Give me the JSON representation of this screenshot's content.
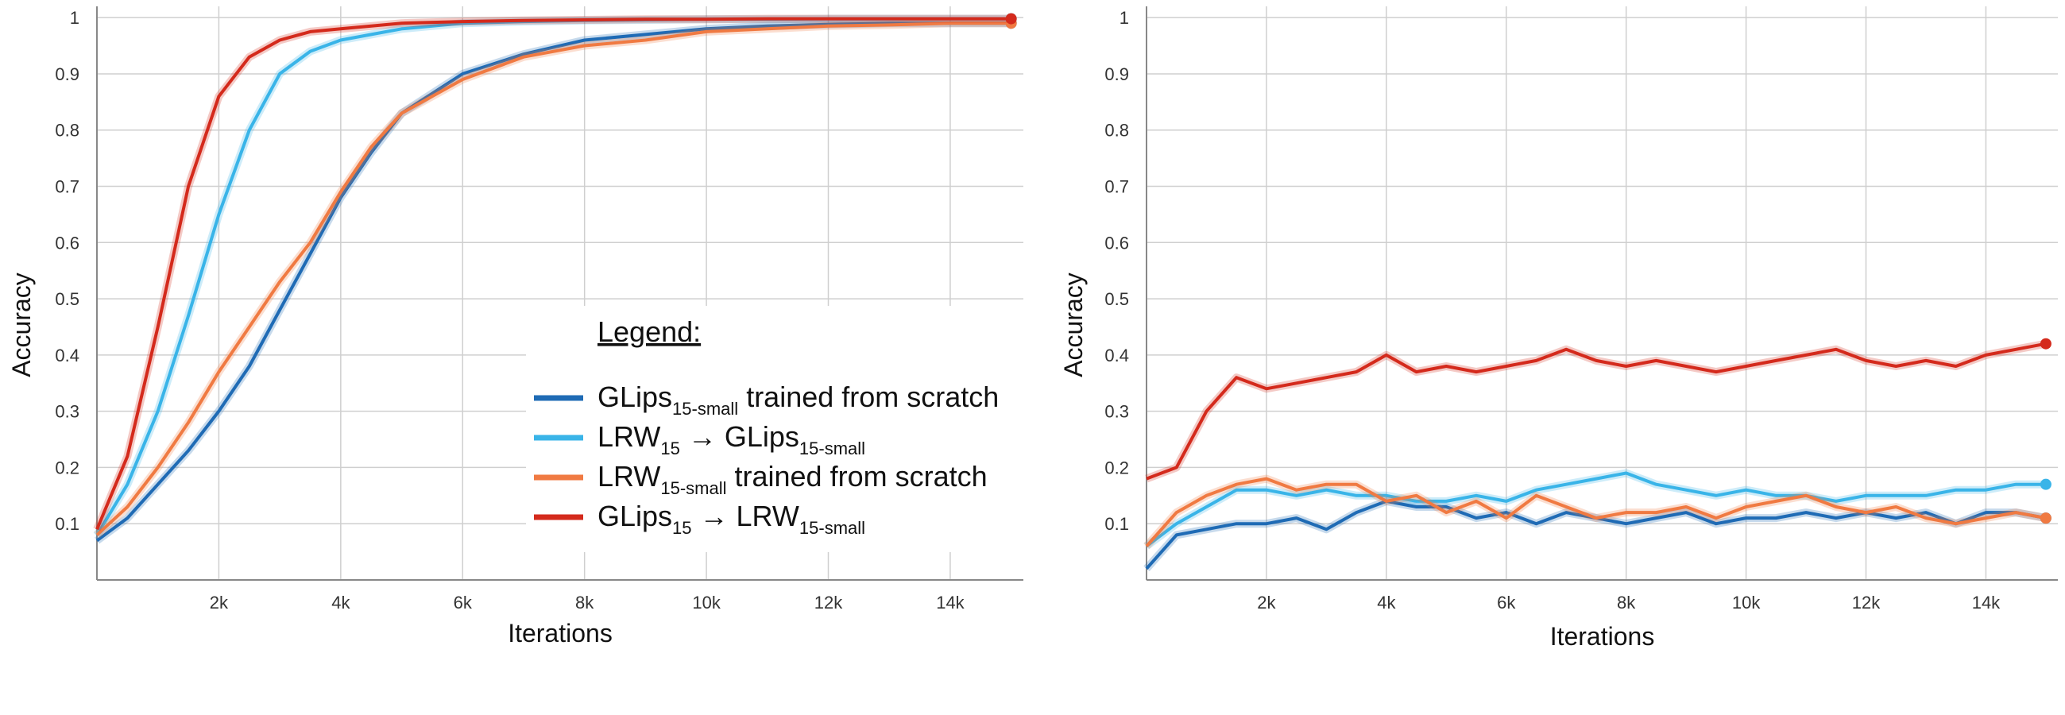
{
  "chart_data": [
    {
      "type": "line",
      "xlabel": "Iterations",
      "ylabel": "Accuracy",
      "xlim": [
        0,
        15200
      ],
      "ylim": [
        0,
        1.02
      ],
      "xticks": [
        2000,
        4000,
        6000,
        8000,
        10000,
        12000,
        14000
      ],
      "xtick_labels": [
        "2k",
        "4k",
        "6k",
        "8k",
        "10k",
        "12k",
        "14k"
      ],
      "yticks": [
        0.1,
        0.2,
        0.3,
        0.4,
        0.5,
        0.6,
        0.7,
        0.8,
        0.9,
        1
      ],
      "ytick_labels": [
        "0.1",
        "0.2",
        "0.3",
        "0.4",
        "0.5",
        "0.6",
        "0.7",
        "0.8",
        "0.9",
        "1"
      ],
      "grid": true,
      "legend": {
        "title": "Legend:",
        "placement": "bottom-right",
        "items": [
          {
            "base": "GLips",
            "sub": "15-small",
            "rest": " trained from scratch",
            "color": "#1f6bb5"
          },
          {
            "base": "LRW",
            "sub": "15",
            "rest": " → GLips",
            "sub2": "15-small",
            "color": "#39b4e8"
          },
          {
            "base": "LRW",
            "sub": "15-small",
            "rest": " trained from scratch",
            "color": "#f07a42"
          },
          {
            "base": "GLips",
            "sub": "15",
            "rest": " → LRW",
            "sub2": "15-small",
            "color": "#d42a1c"
          }
        ]
      },
      "series": [
        {
          "color": "#1f6bb5",
          "x": [
            0,
            500,
            1000,
            1500,
            2000,
            2500,
            3000,
            3500,
            4000,
            4500,
            5000,
            6000,
            7000,
            8000,
            9000,
            10000,
            11000,
            12000,
            13000,
            14000,
            15000
          ],
          "y": [
            0.07,
            0.11,
            0.17,
            0.23,
            0.3,
            0.38,
            0.48,
            0.58,
            0.68,
            0.76,
            0.83,
            0.9,
            0.935,
            0.96,
            0.97,
            0.98,
            0.985,
            0.988,
            0.99,
            0.99,
            0.99
          ]
        },
        {
          "color": "#39b4e8",
          "x": [
            0,
            500,
            1000,
            1500,
            2000,
            2500,
            3000,
            3500,
            4000,
            4500,
            5000,
            6000,
            7000,
            8000,
            9000,
            10000,
            11000,
            12000,
            13000,
            14000,
            15000
          ],
          "y": [
            0.08,
            0.17,
            0.3,
            0.47,
            0.65,
            0.8,
            0.9,
            0.94,
            0.96,
            0.97,
            0.98,
            0.99,
            0.993,
            0.995,
            0.996,
            0.997,
            0.997,
            0.998,
            0.998,
            0.998,
            0.998
          ]
        },
        {
          "color": "#f07a42",
          "x": [
            0,
            500,
            1000,
            1500,
            2000,
            2500,
            3000,
            3500,
            4000,
            4500,
            5000,
            6000,
            7000,
            8000,
            9000,
            10000,
            11000,
            12000,
            13000,
            14000,
            15000
          ],
          "y": [
            0.08,
            0.13,
            0.2,
            0.28,
            0.37,
            0.45,
            0.53,
            0.6,
            0.69,
            0.77,
            0.83,
            0.89,
            0.93,
            0.95,
            0.96,
            0.975,
            0.98,
            0.985,
            0.987,
            0.99,
            0.99
          ]
        },
        {
          "color": "#d42a1c",
          "x": [
            0,
            500,
            1000,
            1500,
            2000,
            2500,
            3000,
            3500,
            4000,
            4500,
            5000,
            6000,
            7000,
            8000,
            9000,
            10000,
            11000,
            12000,
            13000,
            14000,
            15000
          ],
          "y": [
            0.09,
            0.22,
            0.45,
            0.7,
            0.86,
            0.93,
            0.96,
            0.975,
            0.98,
            0.985,
            0.99,
            0.993,
            0.995,
            0.996,
            0.997,
            0.997,
            0.998,
            0.998,
            0.998,
            0.998,
            0.998
          ]
        }
      ]
    },
    {
      "type": "line",
      "xlabel": "Iterations",
      "ylabel": "Accuracy",
      "xlim": [
        0,
        15200
      ],
      "ylim": [
        0,
        1.02
      ],
      "xticks": [
        2000,
        4000,
        6000,
        8000,
        10000,
        12000,
        14000
      ],
      "xtick_labels": [
        "2k",
        "4k",
        "6k",
        "8k",
        "10k",
        "12k",
        "14k"
      ],
      "yticks": [
        0.1,
        0.2,
        0.3,
        0.4,
        0.5,
        0.6,
        0.7,
        0.8,
        0.9,
        1
      ],
      "ytick_labels": [
        "0.1",
        "0.2",
        "0.3",
        "0.4",
        "0.5",
        "0.6",
        "0.7",
        "0.8",
        "0.9",
        "1"
      ],
      "grid": true,
      "series": [
        {
          "color": "#1f6bb5",
          "x": [
            0,
            500,
            1000,
            1500,
            2000,
            2500,
            3000,
            3500,
            4000,
            4500,
            5000,
            5500,
            6000,
            6500,
            7000,
            7500,
            8000,
            8500,
            9000,
            9500,
            10000,
            10500,
            11000,
            11500,
            12000,
            12500,
            13000,
            13500,
            14000,
            14500,
            15000
          ],
          "y": [
            0.02,
            0.08,
            0.09,
            0.1,
            0.1,
            0.11,
            0.09,
            0.12,
            0.14,
            0.13,
            0.13,
            0.11,
            0.12,
            0.1,
            0.12,
            0.11,
            0.1,
            0.11,
            0.12,
            0.1,
            0.11,
            0.11,
            0.12,
            0.11,
            0.12,
            0.11,
            0.12,
            0.1,
            0.12,
            0.12,
            0.11
          ]
        },
        {
          "color": "#39b4e8",
          "x": [
            0,
            500,
            1000,
            1500,
            2000,
            2500,
            3000,
            3500,
            4000,
            4500,
            5000,
            5500,
            6000,
            6500,
            7000,
            7500,
            8000,
            8500,
            9000,
            9500,
            10000,
            10500,
            11000,
            11500,
            12000,
            12500,
            13000,
            13500,
            14000,
            14500,
            15000
          ],
          "y": [
            0.06,
            0.1,
            0.13,
            0.16,
            0.16,
            0.15,
            0.16,
            0.15,
            0.15,
            0.14,
            0.14,
            0.15,
            0.14,
            0.16,
            0.17,
            0.18,
            0.19,
            0.17,
            0.16,
            0.15,
            0.16,
            0.15,
            0.15,
            0.14,
            0.15,
            0.15,
            0.15,
            0.16,
            0.16,
            0.17,
            0.17
          ]
        },
        {
          "color": "#f07a42",
          "x": [
            0,
            500,
            1000,
            1500,
            2000,
            2500,
            3000,
            3500,
            4000,
            4500,
            5000,
            5500,
            6000,
            6500,
            7000,
            7500,
            8000,
            8500,
            9000,
            9500,
            10000,
            10500,
            11000,
            11500,
            12000,
            12500,
            13000,
            13500,
            14000,
            14500,
            15000
          ],
          "y": [
            0.06,
            0.12,
            0.15,
            0.17,
            0.18,
            0.16,
            0.17,
            0.17,
            0.14,
            0.15,
            0.12,
            0.14,
            0.11,
            0.15,
            0.13,
            0.11,
            0.12,
            0.12,
            0.13,
            0.11,
            0.13,
            0.14,
            0.15,
            0.13,
            0.12,
            0.13,
            0.11,
            0.1,
            0.11,
            0.12,
            0.11
          ]
        },
        {
          "color": "#d42a1c",
          "x": [
            0,
            500,
            1000,
            1500,
            2000,
            2500,
            3000,
            3500,
            4000,
            4500,
            5000,
            5500,
            6000,
            6500,
            7000,
            7500,
            8000,
            8500,
            9000,
            9500,
            10000,
            10500,
            11000,
            11500,
            12000,
            12500,
            13000,
            13500,
            14000,
            14500,
            15000
          ],
          "y": [
            0.18,
            0.2,
            0.3,
            0.36,
            0.34,
            0.35,
            0.36,
            0.37,
            0.4,
            0.37,
            0.38,
            0.37,
            0.38,
            0.39,
            0.41,
            0.39,
            0.38,
            0.39,
            0.38,
            0.37,
            0.38,
            0.39,
            0.4,
            0.41,
            0.39,
            0.38,
            0.39,
            0.38,
            0.4,
            0.41,
            0.42
          ]
        }
      ]
    }
  ]
}
